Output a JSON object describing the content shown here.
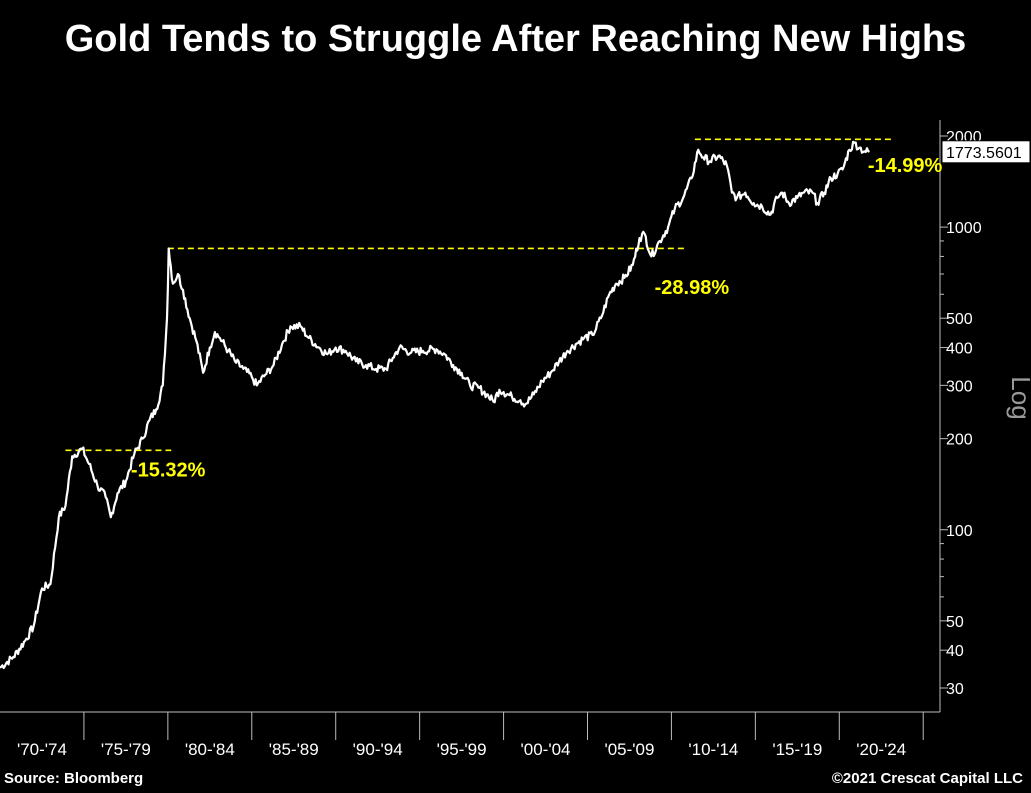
{
  "title": "Gold Tends to Struggle After Reaching New Highs",
  "source": "Source: Bloomberg",
  "copyright": "©2021 Crescat Capital LLC",
  "colors": {
    "background": "#000000",
    "line": "#ffffff",
    "annotation": "#ffff00",
    "axis": "#bbbbbb"
  },
  "chart_data": {
    "type": "line",
    "title": "Gold Tends to Struggle After Reaching New Highs",
    "yscale": "log",
    "ylabel": "Log",
    "ylim": [
      25,
      2300
    ],
    "xlim": [
      1970,
      2026
    ],
    "y_ticks": [
      30,
      40,
      50,
      100,
      200,
      300,
      400,
      500,
      1000,
      2000
    ],
    "x_tick_labels": [
      "'70-'74",
      "'75-'79",
      "'80-'84",
      "'85-'89",
      "'90-'94",
      "'95-'99",
      "'00-'04",
      "'05-'09",
      "'10-'14",
      "'15-'19",
      "'20-'24"
    ],
    "last_value_label": "1773.5601",
    "series": [
      {
        "x": [
          1970.0,
          1970.8,
          1971.5,
          1972.0,
          1972.5,
          1973.0,
          1973.5,
          1973.9,
          1974.3,
          1974.9,
          1975.3,
          1975.8,
          1976.3,
          1976.6,
          1977.0,
          1977.5,
          1978.0,
          1978.5,
          1978.9,
          1979.3,
          1979.7,
          1979.95,
          1980.05,
          1980.3,
          1980.6,
          1980.9,
          1981.3,
          1981.7,
          1982.1,
          1982.5,
          1982.8,
          1983.1,
          1983.6,
          1984.0,
          1984.5,
          1985.0,
          1985.3,
          1985.8,
          1986.3,
          1986.8,
          1987.3,
          1987.9,
          1988.4,
          1989.0,
          1989.5,
          1990.0,
          1990.6,
          1991.2,
          1991.8,
          1992.4,
          1993.0,
          1993.4,
          1993.8,
          1994.5,
          1995.2,
          1996.0,
          1996.5,
          1997.0,
          1997.5,
          1998.0,
          1998.5,
          1999.0,
          1999.4,
          1999.75,
          2000.0,
          2000.5,
          2001.0,
          2001.3,
          2001.8,
          2002.3,
          2002.8,
          2003.3,
          2003.8,
          2004.3,
          2004.8,
          2005.3,
          2005.8,
          2006.3,
          2006.7,
          2007.2,
          2007.7,
          2008.1,
          2008.4,
          2008.8,
          2009.3,
          2009.8,
          2010.2,
          2010.7,
          2011.2,
          2011.6,
          2011.9,
          2012.3,
          2012.8,
          2013.3,
          2013.6,
          2013.9,
          2014.4,
          2014.9,
          2015.4,
          2015.9,
          2016.3,
          2016.6,
          2017.0,
          2017.5,
          2017.9,
          2018.4,
          2018.7,
          2019.1,
          2019.5,
          2019.9,
          2020.2,
          2020.6,
          2020.9,
          2021.2,
          2021.5,
          2021.8
        ],
        "values": [
          35,
          38,
          43,
          48,
          64,
          66,
          110,
          120,
          175,
          185,
          165,
          140,
          128,
          110,
          132,
          145,
          178,
          200,
          230,
          250,
          300,
          500,
          850,
          650,
          700,
          620,
          500,
          420,
          330,
          400,
          450,
          430,
          390,
          360,
          340,
          320,
          300,
          325,
          350,
          410,
          470,
          470,
          430,
          400,
          380,
          400,
          390,
          360,
          350,
          340,
          340,
          370,
          400,
          385,
          390,
          395,
          380,
          350,
          330,
          300,
          295,
          280,
          265,
          290,
          285,
          275,
          268,
          260,
          280,
          310,
          330,
          360,
          390,
          410,
          430,
          440,
          500,
          600,
          650,
          680,
          750,
          920,
          950,
          800,
          900,
          1000,
          1150,
          1250,
          1450,
          1800,
          1700,
          1650,
          1720,
          1600,
          1300,
          1250,
          1300,
          1200,
          1170,
          1100,
          1250,
          1300,
          1200,
          1250,
          1300,
          1300,
          1200,
          1300,
          1450,
          1500,
          1550,
          1800,
          1900,
          1830,
          1780,
          1773.56
        ]
      }
    ],
    "annotations": [
      {
        "text": "-15.32%",
        "peak": 183,
        "from": 1973.9,
        "to": 1980.2,
        "label_x": 1977.8,
        "label_y": 150
      },
      {
        "text": "-28.98%",
        "peak": 850,
        "from": 1980.0,
        "to": 2010.8,
        "label_x": 2009.0,
        "label_y": 600
      },
      {
        "text": "-14.99%",
        "peak": 1950,
        "from": 2011.4,
        "to": 2023.2,
        "label_x": 2021.7,
        "label_y": 1520
      }
    ]
  }
}
